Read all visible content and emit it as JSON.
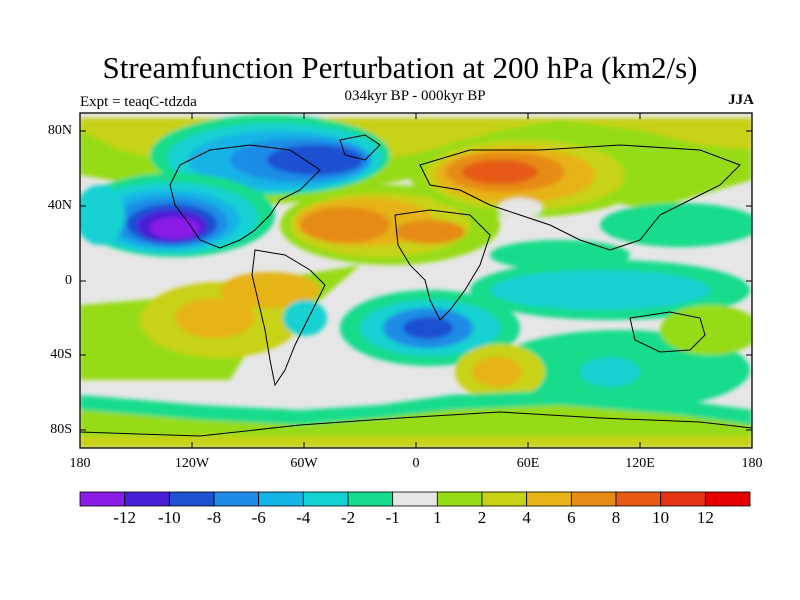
{
  "title": "Streamfunction Perturbation at 200 hPa (km2/s)",
  "subtitle": "034kyr BP - 000kyr BP",
  "experiment": "Expt = teaqC-tdzda",
  "season": "JJA",
  "lat_labels": [
    "80N",
    "40N",
    "0",
    "40S",
    "80S"
  ],
  "lon_labels": [
    "180",
    "120W",
    "60W",
    "0",
    "60E",
    "120E",
    "180"
  ],
  "colorbar": {
    "labels": [
      "-12",
      "-10",
      "-8",
      "-6",
      "-4",
      "-2",
      "-1",
      "1",
      "2",
      "4",
      "6",
      "8",
      "10",
      "12"
    ],
    "colors": [
      "#8a1ee6",
      "#4a1ed6",
      "#1e50d2",
      "#1e8ce6",
      "#14b4e6",
      "#14d2d2",
      "#14dc8c",
      "#e6e6e6",
      "#96dc14",
      "#c8d214",
      "#e6b414",
      "#e68c14",
      "#e65a14",
      "#e63214",
      "#e60000"
    ]
  }
}
